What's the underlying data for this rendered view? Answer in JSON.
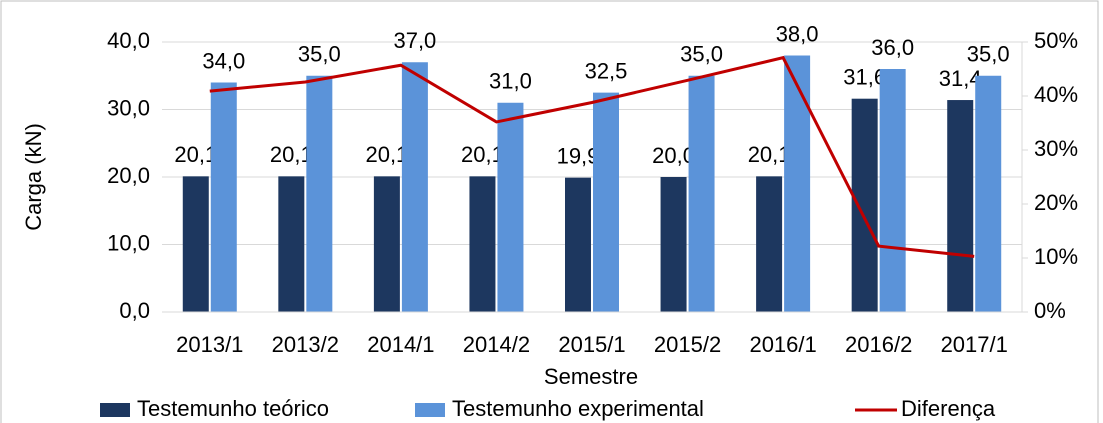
{
  "chart_data": {
    "type": "bar",
    "categories": [
      "2013/1",
      "2013/2",
      "2014/1",
      "2014/2",
      "2015/1",
      "2015/2",
      "2016/1",
      "2016/2",
      "2017/1"
    ],
    "series": [
      {
        "name": "Testemunho teórico",
        "color": "#1d375f",
        "type": "bar",
        "axis": "y",
        "values": [
          20.1,
          20.1,
          20.1,
          20.1,
          19.9,
          20.0,
          20.1,
          31.6,
          31.4
        ],
        "value_labels": [
          "20,1",
          "20,1",
          "20,1",
          "20,1",
          "19,9",
          "20,0",
          "20,1",
          "31,6",
          "31,4"
        ]
      },
      {
        "name": "Testemunho experimental",
        "color": "#5b93d9",
        "type": "bar",
        "axis": "y",
        "values": [
          34.0,
          35.0,
          37.0,
          31.0,
          32.5,
          35.0,
          38.0,
          36.0,
          35.0
        ],
        "value_labels": [
          "34,0",
          "35,0",
          "37,0",
          "31,0",
          "32,5",
          "35,0",
          "38,0",
          "36,0",
          "35,0"
        ]
      },
      {
        "name": "Diferença",
        "color": "#c00000",
        "type": "line",
        "axis": "y2",
        "values": [
          40.9,
          42.6,
          45.7,
          35.2,
          38.8,
          42.9,
          47.1,
          12.2,
          10.3
        ]
      }
    ],
    "ylabel": "Carga (kN)",
    "xlabel": "Semestre",
    "ylim": [
      0,
      40
    ],
    "yticks": [
      {
        "value": 0,
        "label": "0,0"
      },
      {
        "value": 10,
        "label": "10,0"
      },
      {
        "value": 20,
        "label": "20,0"
      },
      {
        "value": 30,
        "label": "30,0"
      },
      {
        "value": 40,
        "label": "40,0"
      }
    ],
    "y2lim": [
      0,
      50
    ],
    "y2ticks": [
      {
        "value": 0,
        "label": "0%"
      },
      {
        "value": 10,
        "label": "10%"
      },
      {
        "value": 20,
        "label": "20%"
      },
      {
        "value": 30,
        "label": "30%"
      },
      {
        "value": 40,
        "label": "40%"
      },
      {
        "value": 50,
        "label": "50%"
      }
    ],
    "grid": true,
    "legend": "bottom"
  }
}
